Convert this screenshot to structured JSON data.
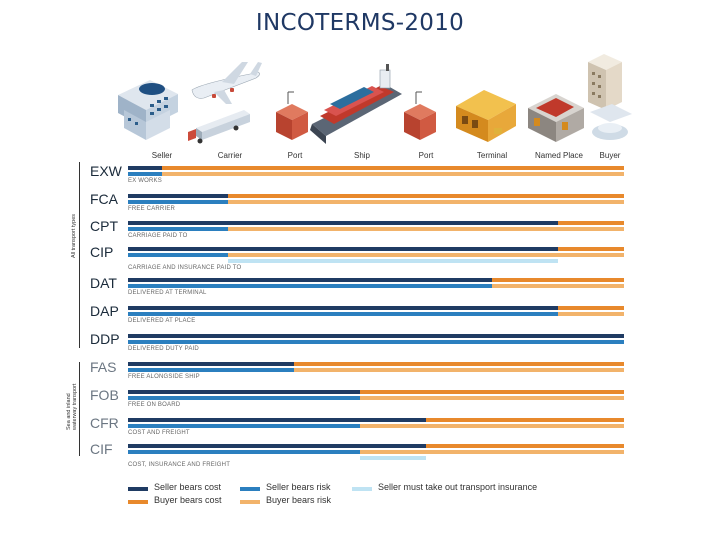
{
  "title": "INCOTERMS-2010",
  "stages": [
    "Seller",
    "Carrier",
    "Port",
    "Ship",
    "Port",
    "Terminal",
    "Named Place",
    "Buyer"
  ],
  "icons": [
    "seller-building-icon",
    "airplane-truck-icon",
    "port-container-icon",
    "cargo-ship-icon",
    "port-container-icon",
    "terminal-warehouse-icon",
    "named-place-warehouse-icon",
    "buyer-building-icon"
  ],
  "groups": {
    "any_mode": "All transport types",
    "sea": "Sea and inland waterway transport"
  },
  "colors": {
    "seller_cost": "#1f3b63",
    "seller_risk": "#2b7fbf",
    "buyer_cost": "#e8892c",
    "buyer_risk": "#f2b36b",
    "insurance": "#bfe3f3"
  },
  "terms": [
    {
      "code": "EXW",
      "name": "EX WORKS",
      "group": "any",
      "cost_split": 0,
      "risk_split": 0,
      "insurance": null
    },
    {
      "code": "FCA",
      "name": "FREE CARRIER",
      "group": "any",
      "cost_split": 1,
      "risk_split": 1,
      "insurance": null
    },
    {
      "code": "CPT",
      "name": "CARRIAGE PAID TO",
      "group": "any",
      "cost_split": 6,
      "risk_split": 1,
      "insurance": null
    },
    {
      "code": "CIP",
      "name": "CARRIAGE AND INSURANCE PAID TO",
      "group": "any",
      "cost_split": 6,
      "risk_split": 1,
      "insurance": [
        1,
        6
      ]
    },
    {
      "code": "DAT",
      "name": "DELIVERED AT TERMINAL",
      "group": "any",
      "cost_split": 5,
      "risk_split": 5,
      "insurance": null
    },
    {
      "code": "DAP",
      "name": "DELIVERED AT PLACE",
      "group": "any",
      "cost_split": 6,
      "risk_split": 6,
      "insurance": null
    },
    {
      "code": "DDP",
      "name": "DELIVERED DUTY PAID",
      "group": "any",
      "cost_split": 7,
      "risk_split": 7,
      "insurance": null
    },
    {
      "code": "FAS",
      "name": "FREE ALONGSIDE SHIP",
      "group": "sea",
      "cost_split": 2,
      "risk_split": 2,
      "insurance": null
    },
    {
      "code": "FOB",
      "name": "FREE ON BOARD",
      "group": "sea",
      "cost_split": 3,
      "risk_split": 3,
      "insurance": null
    },
    {
      "code": "CFR",
      "name": "COST AND FREIGHT",
      "group": "sea",
      "cost_split": 4,
      "risk_split": 3,
      "insurance": null
    },
    {
      "code": "CIF",
      "name": "COST, INSURANCE AND FREIGHT",
      "group": "sea",
      "cost_split": 4,
      "risk_split": 3,
      "insurance": [
        3,
        4
      ]
    }
  ],
  "legend": {
    "seller_cost": "Seller bears cost",
    "seller_risk": "Seller bears risk",
    "insurance": "Seller must take out transport insurance",
    "buyer_cost": "Buyer bears cost",
    "buyer_risk": "Buyer bears risk"
  }
}
